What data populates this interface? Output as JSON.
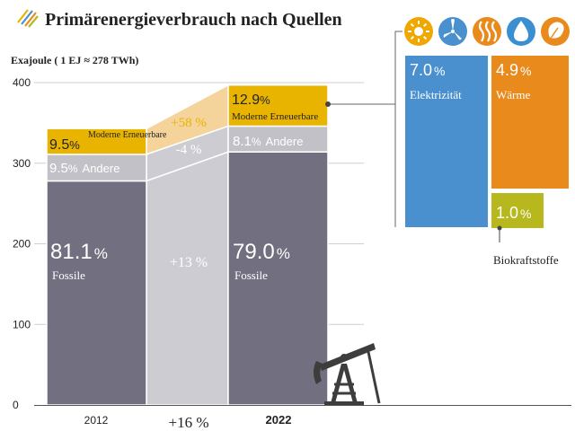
{
  "colors": {
    "fossil": "#727080",
    "other": "#c2c1c8",
    "renewable": "#e9b400",
    "renewable_light": "#f4d49a",
    "connector_grey": "#cdccd3",
    "electricity": "#4a90cf",
    "heat": "#e98b1c",
    "biofuel": "#b6b81e",
    "text_white": "#ffffff",
    "text_dark": "#222222",
    "grid": "#cfcfcf",
    "icon_bg": [
      "#f0a800",
      "#4a90cf",
      "#e98b1c",
      "#3a8fd0",
      "#e98b1c"
    ]
  },
  "header": {
    "title": "Primärenergieverbrauch nach Quellen",
    "logo_icon": "stripes-icon"
  },
  "icons": [
    "sun-icon",
    "wind-icon",
    "heat-icon",
    "water-drop-icon",
    "leaf-icon"
  ],
  "chart_data": {
    "type": "bar",
    "subtype": "stacked",
    "title": "Primärenergieverbrauch nach Quellen",
    "ylabel": "Exajoule ( 1 EJ ≈ 278 TWh)",
    "ylim": [
      0,
      400
    ],
    "yticks": [
      "0",
      "100",
      "200",
      "300",
      "400"
    ],
    "categories": [
      "2012",
      "2022"
    ],
    "totals": [
      343,
      397
    ],
    "series": [
      {
        "name": "Fossile",
        "percent_labels": [
          "81.1",
          "79.0"
        ],
        "values": [
          278,
          314
        ]
      },
      {
        "name": "Andere",
        "percent_labels": [
          "9.5",
          "8.1"
        ],
        "values": [
          33,
          32
        ]
      },
      {
        "name": "Moderne Erneuerbare",
        "percent_labels": [
          "9.5",
          "12.9"
        ],
        "values": [
          32,
          51
        ]
      }
    ],
    "changes": {
      "fossile": "+13 %",
      "andere": "-4 %",
      "erneuerbare": "+58 %",
      "total": "+16 %"
    },
    "renewables_breakdown": [
      {
        "name": "Elektrizität",
        "percent": "7.0",
        "value": 27.8
      },
      {
        "name": "Wärme",
        "percent": "4.9",
        "value": 19.5
      },
      {
        "name": "Biokraftstoffe",
        "percent": "1.0",
        "value": 4.0
      }
    ],
    "percent_sign": "%",
    "grid": true
  }
}
